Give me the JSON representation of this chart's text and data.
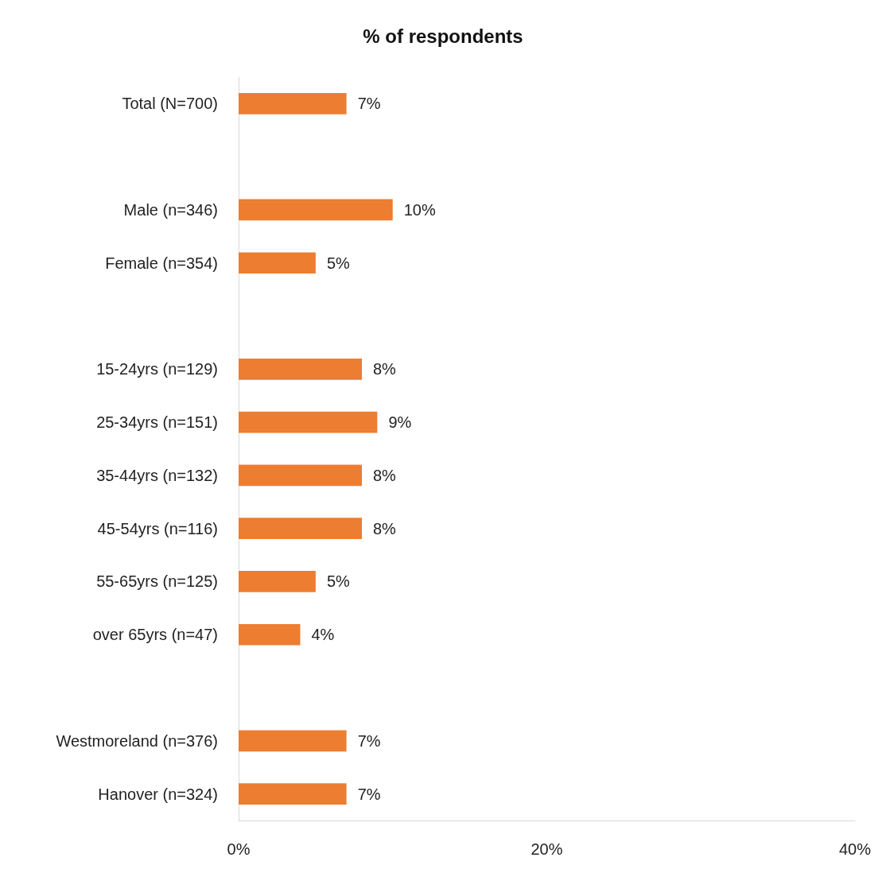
{
  "chart_data": {
    "type": "bar",
    "orientation": "horizontal",
    "title": "% of respondents",
    "categories": [
      "Total (N=700)",
      null,
      "Male (n=346)",
      "Female (n=354)",
      null,
      "15-24yrs (n=129)",
      "25-34yrs (n=151)",
      "35-44yrs (n=132)",
      "45-54yrs (n=116)",
      "55-65yrs (n=125)",
      "over 65yrs (n=47)",
      null,
      "Westmoreland (n=376)",
      "Hanover (n=324)"
    ],
    "values": [
      7,
      null,
      10,
      5,
      null,
      8,
      9,
      8,
      8,
      5,
      4,
      null,
      7,
      7
    ],
    "value_labels": [
      "7%",
      null,
      "10%",
      "5%",
      null,
      "8%",
      "9%",
      "8%",
      "8%",
      "5%",
      "4%",
      null,
      "7%",
      "7%"
    ],
    "color": "#ed7d31",
    "xlim": [
      0,
      40
    ],
    "xticks": [
      {
        "value": 0,
        "label": "0%"
      },
      {
        "value": 20,
        "label": "20%"
      },
      {
        "value": 40,
        "label": "40%"
      }
    ],
    "grid": false
  }
}
